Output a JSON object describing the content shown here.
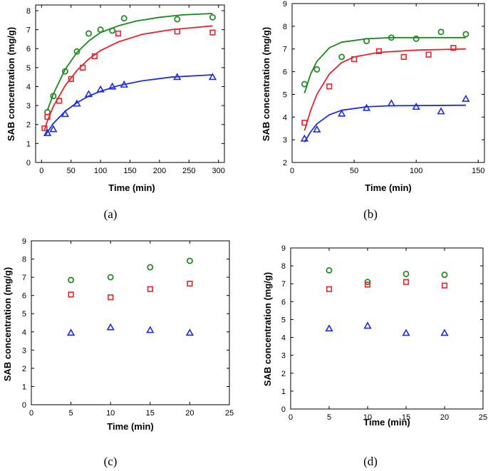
{
  "colors": {
    "green": "#1b8a1b",
    "red": "#e8232a",
    "blue": "#1d2ee0",
    "axis": "#000000"
  },
  "chart_data": [
    {
      "id": "a",
      "panel_label": "(a)",
      "type": "scatter",
      "xlabel": "Time  (min)",
      "ylabel": "SAB concentration  (mg/g)",
      "xlim": [
        -10,
        310
      ],
      "ylim": [
        0,
        8.3
      ],
      "xticks": [
        0,
        50,
        100,
        150,
        200,
        250,
        300
      ],
      "yticks": [
        0,
        1,
        2,
        3,
        4,
        5,
        6,
        7,
        8
      ],
      "series": [
        {
          "name": "green circles",
          "marker": "circle",
          "color_key": "green",
          "x": [
            10,
            20,
            40,
            60,
            80,
            100,
            120,
            140,
            230,
            290
          ],
          "y": [
            2.65,
            3.5,
            4.8,
            5.85,
            6.8,
            7.0,
            6.95,
            7.6,
            7.55,
            7.65
          ],
          "fit": [
            [
              10,
              2.75
            ],
            [
              20,
              3.6
            ],
            [
              40,
              4.9
            ],
            [
              60,
              5.8
            ],
            [
              80,
              6.4
            ],
            [
              100,
              6.85
            ],
            [
              130,
              7.2
            ],
            [
              160,
              7.45
            ],
            [
              200,
              7.65
            ],
            [
              240,
              7.78
            ],
            [
              290,
              7.85
            ]
          ]
        },
        {
          "name": "red squares",
          "marker": "square",
          "color_key": "red",
          "x": [
            5,
            10,
            30,
            50,
            70,
            90,
            130,
            230,
            290
          ],
          "y": [
            1.8,
            2.4,
            3.25,
            4.4,
            5.0,
            5.6,
            6.8,
            6.9,
            6.85
          ],
          "fit": [
            [
              5,
              1.7
            ],
            [
              10,
              2.2
            ],
            [
              20,
              2.95
            ],
            [
              40,
              4.05
            ],
            [
              60,
              4.85
            ],
            [
              80,
              5.45
            ],
            [
              100,
              5.9
            ],
            [
              130,
              6.35
            ],
            [
              170,
              6.75
            ],
            [
              220,
              7.0
            ],
            [
              290,
              7.2
            ]
          ]
        },
        {
          "name": "blue triangles",
          "marker": "triangle",
          "color_key": "blue",
          "x": [
            10,
            20,
            40,
            60,
            80,
            100,
            120,
            140,
            230,
            290
          ],
          "y": [
            1.55,
            1.75,
            2.55,
            3.1,
            3.6,
            3.85,
            4.0,
            4.1,
            4.5,
            4.5
          ],
          "fit": [
            [
              5,
              1.4
            ],
            [
              10,
              1.6
            ],
            [
              20,
              2.05
            ],
            [
              40,
              2.7
            ],
            [
              60,
              3.15
            ],
            [
              80,
              3.5
            ],
            [
              100,
              3.75
            ],
            [
              130,
              4.05
            ],
            [
              170,
              4.3
            ],
            [
              220,
              4.5
            ],
            [
              290,
              4.62
            ]
          ]
        }
      ]
    },
    {
      "id": "b",
      "panel_label": "(b)",
      "type": "scatter",
      "xlabel": "Time  (min)",
      "ylabel": "SAB concentration  (mg/g)",
      "xlim": [
        0,
        155
      ],
      "ylim": [
        2,
        9
      ],
      "xticks": [
        0,
        50,
        100,
        150
      ],
      "yticks": [
        2,
        3,
        4,
        5,
        6,
        7,
        8,
        9
      ],
      "series": [
        {
          "name": "green circles",
          "marker": "circle",
          "color_key": "green",
          "x": [
            10,
            20,
            40,
            60,
            80,
            100,
            120,
            140
          ],
          "y": [
            5.45,
            6.1,
            6.65,
            7.35,
            7.5,
            7.45,
            7.75,
            7.65
          ],
          "fit": [
            [
              10,
              5.05
            ],
            [
              15,
              5.9
            ],
            [
              20,
              6.45
            ],
            [
              30,
              7.05
            ],
            [
              40,
              7.3
            ],
            [
              60,
              7.45
            ],
            [
              80,
              7.5
            ],
            [
              140,
              7.5
            ]
          ]
        },
        {
          "name": "red squares",
          "marker": "square",
          "color_key": "red",
          "x": [
            10,
            30,
            50,
            70,
            90,
            110,
            130
          ],
          "y": [
            3.75,
            5.35,
            6.55,
            6.9,
            6.65,
            6.75,
            7.05
          ],
          "fit": [
            [
              10,
              3.4
            ],
            [
              15,
              4.3
            ],
            [
              20,
              5.0
            ],
            [
              30,
              5.9
            ],
            [
              40,
              6.4
            ],
            [
              50,
              6.65
            ],
            [
              70,
              6.85
            ],
            [
              100,
              6.95
            ],
            [
              140,
              7.0
            ]
          ]
        },
        {
          "name": "blue triangles",
          "marker": "triangle",
          "color_key": "blue",
          "x": [
            10,
            20,
            40,
            60,
            80,
            100,
            120,
            140
          ],
          "y": [
            3.05,
            3.45,
            4.15,
            4.4,
            4.6,
            4.45,
            4.25,
            4.8
          ],
          "fit": [
            [
              10,
              2.9
            ],
            [
              15,
              3.35
            ],
            [
              20,
              3.7
            ],
            [
              30,
              4.1
            ],
            [
              40,
              4.3
            ],
            [
              60,
              4.45
            ],
            [
              80,
              4.5
            ],
            [
              140,
              4.52
            ]
          ]
        }
      ]
    },
    {
      "id": "c",
      "panel_label": "(c)",
      "type": "scatter",
      "xlabel": "Time  (min)",
      "ylabel": "SAB concentration  (mg/g)",
      "xlim": [
        0,
        25
      ],
      "ylim": [
        0,
        9
      ],
      "xticks": [
        0,
        5,
        10,
        15,
        20,
        25
      ],
      "yticks": [
        0,
        1,
        2,
        3,
        4,
        5,
        6,
        7,
        8,
        9
      ],
      "series": [
        {
          "name": "green circles",
          "marker": "circle",
          "color_key": "green",
          "x": [
            5,
            10,
            15,
            20
          ],
          "y": [
            6.85,
            7.0,
            7.55,
            7.9
          ]
        },
        {
          "name": "red squares",
          "marker": "square",
          "color_key": "red",
          "x": [
            5,
            10,
            15,
            20
          ],
          "y": [
            6.05,
            5.9,
            6.35,
            6.65
          ]
        },
        {
          "name": "blue triangles",
          "marker": "triangle",
          "color_key": "blue",
          "x": [
            5,
            10,
            15,
            20
          ],
          "y": [
            3.95,
            4.25,
            4.1,
            3.95
          ]
        }
      ]
    },
    {
      "id": "d",
      "panel_label": "(d)",
      "type": "scatter",
      "xlabel": "Time  (min)",
      "ylabel": "SAB concentration  (mg/g)",
      "xlim": [
        0,
        25
      ],
      "ylim": [
        0,
        9
      ],
      "xticks": [
        0,
        5,
        10,
        15,
        20,
        25
      ],
      "yticks": [
        0,
        1,
        2,
        3,
        4,
        5,
        6,
        7,
        8,
        9
      ],
      "series": [
        {
          "name": "green circles",
          "marker": "circle",
          "color_key": "green",
          "x": [
            5,
            10,
            15,
            20
          ],
          "y": [
            7.75,
            7.1,
            7.55,
            7.5
          ]
        },
        {
          "name": "red squares",
          "marker": "square",
          "color_key": "red",
          "x": [
            5,
            10,
            15,
            20
          ],
          "y": [
            6.7,
            6.95,
            7.1,
            6.9
          ]
        },
        {
          "name": "blue triangles",
          "marker": "triangle",
          "color_key": "blue",
          "x": [
            5,
            10,
            15,
            20
          ],
          "y": [
            4.5,
            4.65,
            4.25,
            4.25
          ]
        }
      ]
    }
  ]
}
